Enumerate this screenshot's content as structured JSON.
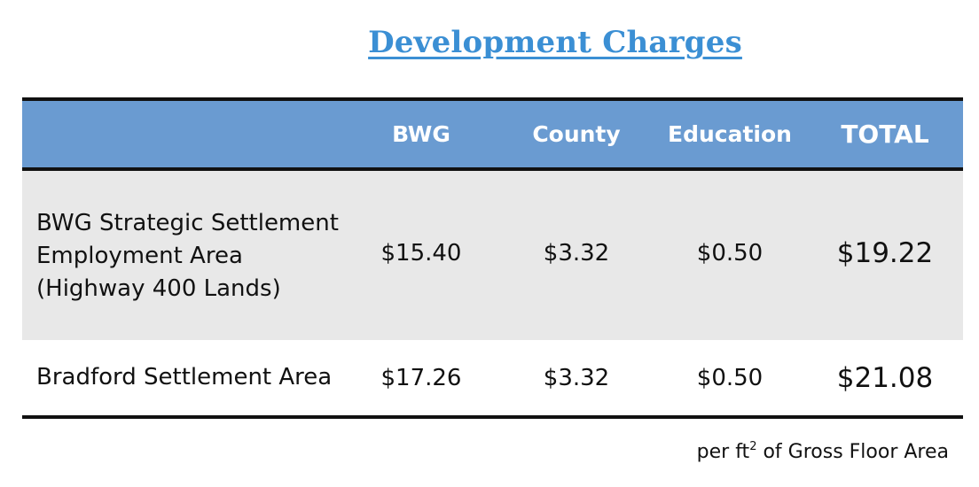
{
  "title": "Development Charges",
  "table": {
    "headers": [
      "",
      "BWG",
      "County",
      "Education",
      "TOTAL"
    ],
    "rows": [
      {
        "label_lines": [
          "BWG Strategic Settlement",
          "Employment Area",
          "(Highway 400 Lands)"
        ],
        "bwg": "$15.40",
        "county": "$3.32",
        "education": "$0.50",
        "total": "$19.22"
      },
      {
        "label_lines": [
          "Bradford Settlement Area"
        ],
        "bwg": "$17.26",
        "county": "$3.32",
        "education": "$0.50",
        "total": "$21.08"
      }
    ]
  },
  "footnote": {
    "prefix": "per ft",
    "superscript": "2",
    "suffix": " of Gross Floor Area"
  },
  "colors": {
    "title": "#3b8fd4",
    "header_bg": "#6a9bd1",
    "row1_bg": "#e8e8e8",
    "rule": "#111111"
  }
}
